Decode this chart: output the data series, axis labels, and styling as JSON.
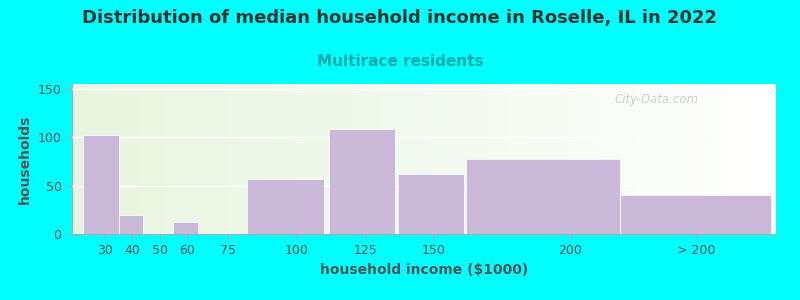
{
  "title": "Distribution of median household income in Roselle, IL in 2022",
  "subtitle": "Multirace residents",
  "xlabel": "household income ($1000)",
  "ylabel": "households",
  "background_color": "#00FFFF",
  "bar_color": "#c9b8d8",
  "values": [
    102,
    20,
    0,
    12,
    0,
    57,
    108,
    62,
    78,
    40
  ],
  "ylim": [
    0,
    155
  ],
  "yticks": [
    0,
    50,
    100,
    150
  ],
  "title_fontsize": 13,
  "subtitle_fontsize": 11,
  "axis_label_fontsize": 10,
  "tick_fontsize": 9,
  "title_color": "#333333",
  "subtitle_color": "#00AAAA",
  "axis_label_color": "#555555",
  "tick_color": "#555555",
  "watermark": "City-Data.com",
  "bar_lefts": [
    22,
    35,
    45,
    55,
    65,
    82,
    112,
    137,
    162,
    218
  ],
  "bar_widths": [
    13,
    9,
    9,
    9,
    17,
    28,
    24,
    24,
    56,
    55
  ],
  "xtick_positions": [
    30,
    40,
    50,
    60,
    75,
    100,
    125,
    150,
    200,
    246
  ],
  "xtick_labels": [
    "30",
    "40",
    "50",
    "60",
    "75",
    "100",
    "125",
    "150",
    "200",
    "> 200"
  ],
  "xlim": [
    18,
    275
  ]
}
